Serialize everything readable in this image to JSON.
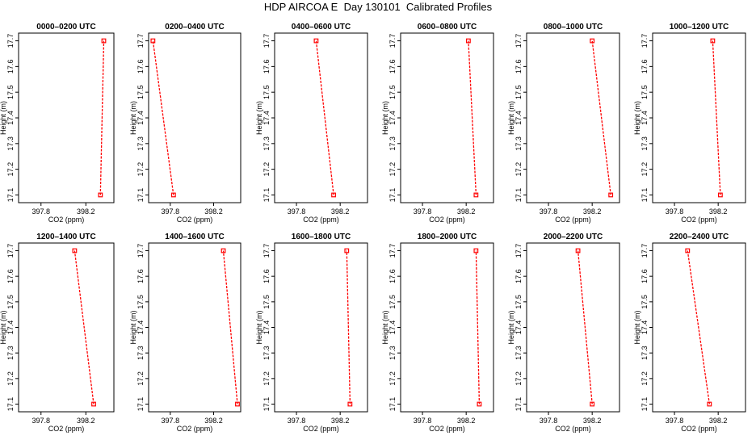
{
  "title": "HDP AIRCOA E  Day 130101  Calibrated Profiles",
  "colors": {
    "series": "#ff0000",
    "axis": "#000000",
    "background": "#ffffff"
  },
  "chart_data": [
    {
      "type": "line",
      "title": "0000–0200 UTC",
      "xlabel": "CO2 (ppm)",
      "ylabel": "Height (m)",
      "xlim": [
        397.6,
        398.45
      ],
      "ylim": [
        17.07,
        17.73
      ],
      "xticks": [
        397.8,
        398.2
      ],
      "xtick_labels": [
        "397.8",
        "398.2"
      ],
      "yticks": [
        17.1,
        17.2,
        17.3,
        17.4,
        17.5,
        17.6,
        17.7
      ],
      "ytick_labels": [
        "17.1",
        "17.2",
        "17.3",
        "17.4",
        "17.5",
        "17.6",
        "17.7"
      ],
      "points": [
        {
          "x": 398.33,
          "y": 17.1
        },
        {
          "x": 398.36,
          "y": 17.7
        }
      ]
    },
    {
      "type": "line",
      "title": "0200–0400 UTC",
      "xlabel": "CO2 (ppm)",
      "ylabel": "Height (m)",
      "xlim": [
        397.6,
        398.45
      ],
      "ylim": [
        17.07,
        17.73
      ],
      "xticks": [
        397.8,
        398.2
      ],
      "xtick_labels": [
        "397.8",
        "398.2"
      ],
      "yticks": [
        17.1,
        17.2,
        17.3,
        17.4,
        17.5,
        17.6,
        17.7
      ],
      "ytick_labels": [
        "17.1",
        "17.2",
        "17.3",
        "17.4",
        "17.5",
        "17.6",
        "17.7"
      ],
      "points": [
        {
          "x": 397.83,
          "y": 17.1
        },
        {
          "x": 397.64,
          "y": 17.7
        }
      ]
    },
    {
      "type": "line",
      "title": "0400–0600 UTC",
      "xlabel": "CO2 (ppm)",
      "ylabel": "Height (m)",
      "xlim": [
        397.6,
        398.45
      ],
      "ylim": [
        17.07,
        17.73
      ],
      "xticks": [
        397.8,
        398.2
      ],
      "xtick_labels": [
        "397.8",
        "398.2"
      ],
      "yticks": [
        17.1,
        17.2,
        17.3,
        17.4,
        17.5,
        17.6,
        17.7
      ],
      "ytick_labels": [
        "17.1",
        "17.2",
        "17.3",
        "17.4",
        "17.5",
        "17.6",
        "17.7"
      ],
      "points": [
        {
          "x": 398.14,
          "y": 17.1
        },
        {
          "x": 397.98,
          "y": 17.7
        }
      ]
    },
    {
      "type": "line",
      "title": "0600–0800 UTC",
      "xlabel": "CO2 (ppm)",
      "ylabel": "Height (m)",
      "xlim": [
        397.6,
        398.45
      ],
      "ylim": [
        17.07,
        17.73
      ],
      "xticks": [
        397.8,
        398.2
      ],
      "xtick_labels": [
        "397.8",
        "398.2"
      ],
      "yticks": [
        17.1,
        17.2,
        17.3,
        17.4,
        17.5,
        17.6,
        17.7
      ],
      "ytick_labels": [
        "17.1",
        "17.2",
        "17.3",
        "17.4",
        "17.5",
        "17.6",
        "17.7"
      ],
      "points": [
        {
          "x": 398.29,
          "y": 17.1
        },
        {
          "x": 398.22,
          "y": 17.7
        }
      ]
    },
    {
      "type": "line",
      "title": "0800–1000 UTC",
      "xlabel": "CO2 (ppm)",
      "ylabel": "Height (m)",
      "xlim": [
        397.6,
        398.45
      ],
      "ylim": [
        17.07,
        17.73
      ],
      "xticks": [
        397.8,
        398.2
      ],
      "xtick_labels": [
        "397.8",
        "398.2"
      ],
      "yticks": [
        17.1,
        17.2,
        17.3,
        17.4,
        17.5,
        17.6,
        17.7
      ],
      "ytick_labels": [
        "17.1",
        "17.2",
        "17.3",
        "17.4",
        "17.5",
        "17.6",
        "17.7"
      ],
      "points": [
        {
          "x": 398.37,
          "y": 17.1
        },
        {
          "x": 398.2,
          "y": 17.7
        }
      ]
    },
    {
      "type": "line",
      "title": "1000–1200 UTC",
      "xlabel": "CO2 (ppm)",
      "ylabel": "Height (m)",
      "xlim": [
        397.6,
        398.45
      ],
      "ylim": [
        17.07,
        17.73
      ],
      "xticks": [
        397.8,
        398.2
      ],
      "xtick_labels": [
        "397.8",
        "398.2"
      ],
      "yticks": [
        17.1,
        17.2,
        17.3,
        17.4,
        17.5,
        17.6,
        17.7
      ],
      "ytick_labels": [
        "17.1",
        "17.2",
        "17.3",
        "17.4",
        "17.5",
        "17.6",
        "17.7"
      ],
      "points": [
        {
          "x": 398.22,
          "y": 17.1
        },
        {
          "x": 398.15,
          "y": 17.7
        }
      ]
    },
    {
      "type": "line",
      "title": "1200–1400 UTC",
      "xlabel": "CO2 (ppm)",
      "ylabel": "Height (m)",
      "xlim": [
        397.6,
        398.45
      ],
      "ylim": [
        17.07,
        17.73
      ],
      "xticks": [
        397.8,
        398.2
      ],
      "xtick_labels": [
        "397.8",
        "398.2"
      ],
      "yticks": [
        17.1,
        17.2,
        17.3,
        17.4,
        17.5,
        17.6,
        17.7
      ],
      "ytick_labels": [
        "17.1",
        "17.2",
        "17.3",
        "17.4",
        "17.5",
        "17.6",
        "17.7"
      ],
      "points": [
        {
          "x": 398.27,
          "y": 17.1
        },
        {
          "x": 398.1,
          "y": 17.7
        }
      ]
    },
    {
      "type": "line",
      "title": "1400–1600 UTC",
      "xlabel": "CO2 (ppm)",
      "ylabel": "Height (m)",
      "xlim": [
        397.6,
        398.45
      ],
      "ylim": [
        17.07,
        17.73
      ],
      "xticks": [
        397.8,
        398.2
      ],
      "xtick_labels": [
        "397.8",
        "398.2"
      ],
      "yticks": [
        17.1,
        17.2,
        17.3,
        17.4,
        17.5,
        17.6,
        17.7
      ],
      "ytick_labels": [
        "17.1",
        "17.2",
        "17.3",
        "17.4",
        "17.5",
        "17.6",
        "17.7"
      ],
      "points": [
        {
          "x": 398.42,
          "y": 17.1
        },
        {
          "x": 398.29,
          "y": 17.7
        }
      ]
    },
    {
      "type": "line",
      "title": "1600–1800 UTC",
      "xlabel": "CO2 (ppm)",
      "ylabel": "Height (m)",
      "xlim": [
        397.6,
        398.45
      ],
      "ylim": [
        17.07,
        17.73
      ],
      "xticks": [
        397.8,
        398.2
      ],
      "xtick_labels": [
        "397.8",
        "398.2"
      ],
      "yticks": [
        17.1,
        17.2,
        17.3,
        17.4,
        17.5,
        17.6,
        17.7
      ],
      "ytick_labels": [
        "17.1",
        "17.2",
        "17.3",
        "17.4",
        "17.5",
        "17.6",
        "17.7"
      ],
      "points": [
        {
          "x": 398.29,
          "y": 17.1
        },
        {
          "x": 398.26,
          "y": 17.7
        }
      ]
    },
    {
      "type": "line",
      "title": "1800–2000 UTC",
      "xlabel": "CO2 (ppm)",
      "ylabel": "Height (m)",
      "xlim": [
        397.6,
        398.45
      ],
      "ylim": [
        17.07,
        17.73
      ],
      "xticks": [
        397.8,
        398.2
      ],
      "xtick_labels": [
        "397.8",
        "398.2"
      ],
      "yticks": [
        17.1,
        17.2,
        17.3,
        17.4,
        17.5,
        17.6,
        17.7
      ],
      "ytick_labels": [
        "17.1",
        "17.2",
        "17.3",
        "17.4",
        "17.5",
        "17.6",
        "17.7"
      ],
      "points": [
        {
          "x": 398.32,
          "y": 17.1
        },
        {
          "x": 398.29,
          "y": 17.7
        }
      ]
    },
    {
      "type": "line",
      "title": "2000–2200 UTC",
      "xlabel": "CO2 (ppm)",
      "ylabel": "Height (m)",
      "xlim": [
        397.6,
        398.45
      ],
      "ylim": [
        17.07,
        17.73
      ],
      "xticks": [
        397.8,
        398.2
      ],
      "xtick_labels": [
        "397.8",
        "398.2"
      ],
      "yticks": [
        17.1,
        17.2,
        17.3,
        17.4,
        17.5,
        17.6,
        17.7
      ],
      "ytick_labels": [
        "17.1",
        "17.2",
        "17.3",
        "17.4",
        "17.5",
        "17.6",
        "17.7"
      ],
      "points": [
        {
          "x": 398.2,
          "y": 17.1
        },
        {
          "x": 398.07,
          "y": 17.7
        }
      ]
    },
    {
      "type": "line",
      "title": "2200–2400 UTC",
      "xlabel": "CO2 (ppm)",
      "ylabel": "Height (m)",
      "xlim": [
        397.6,
        398.45
      ],
      "ylim": [
        17.07,
        17.73
      ],
      "xticks": [
        397.8,
        398.2
      ],
      "xtick_labels": [
        "397.8",
        "398.2"
      ],
      "yticks": [
        17.1,
        17.2,
        17.3,
        17.4,
        17.5,
        17.6,
        17.7
      ],
      "ytick_labels": [
        "17.1",
        "17.2",
        "17.3",
        "17.4",
        "17.5",
        "17.6",
        "17.7"
      ],
      "points": [
        {
          "x": 398.12,
          "y": 17.1
        },
        {
          "x": 397.92,
          "y": 17.7
        }
      ]
    }
  ]
}
